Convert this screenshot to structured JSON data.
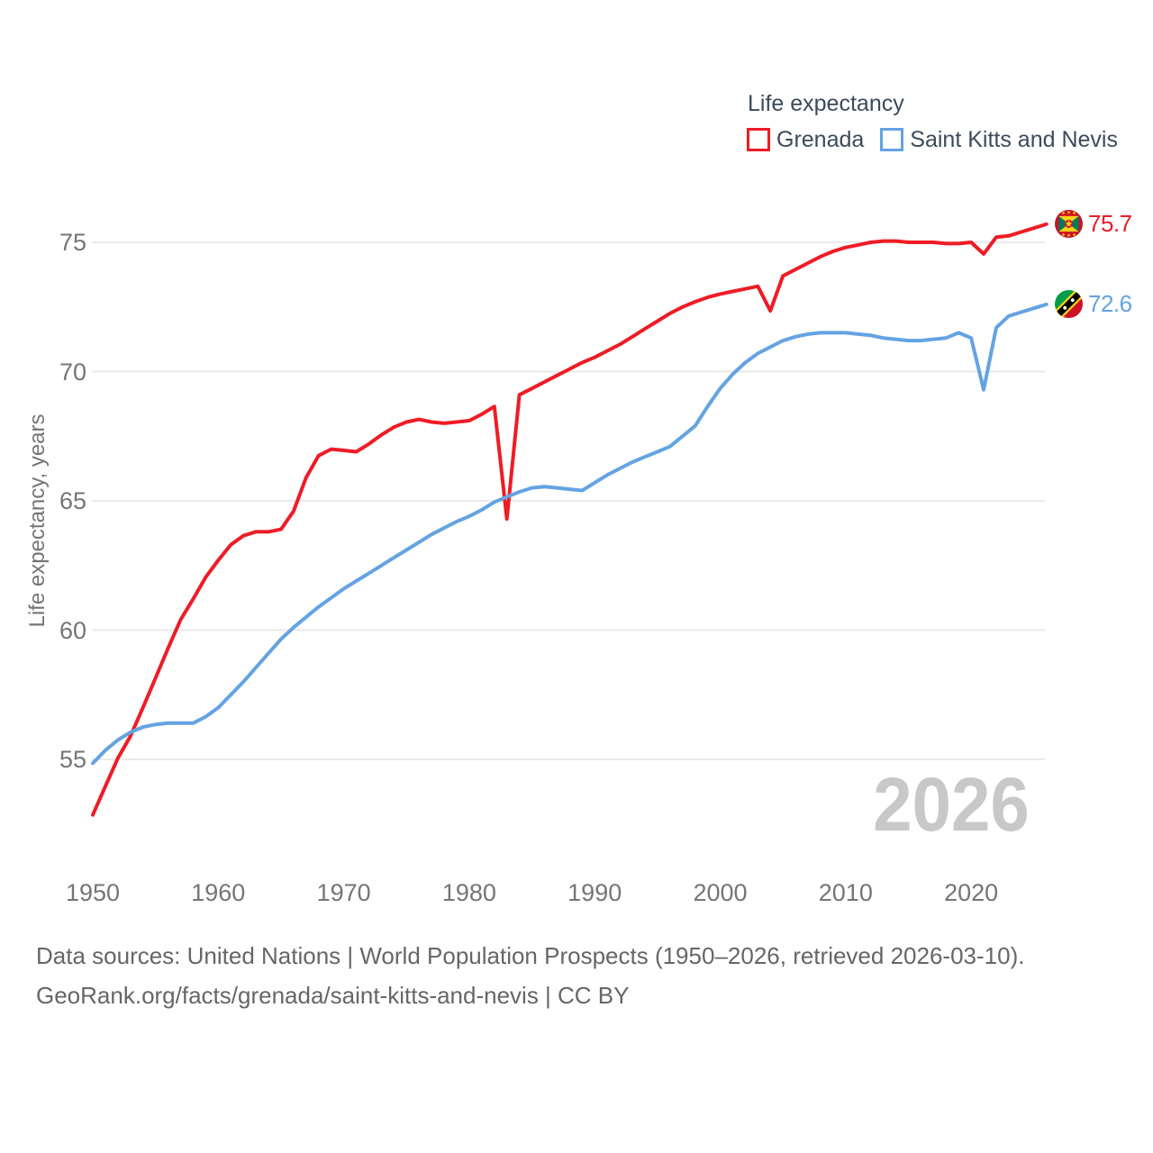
{
  "chart_data": {
    "type": "line",
    "title": "Life expectancy",
    "ylabel": "Life expectancy, years",
    "xlabel": "",
    "xlim": [
      1950,
      2026
    ],
    "ylim": [
      52.5,
      77
    ],
    "grid": true,
    "legend_position": "top-right",
    "x_ticks": [
      1950,
      1960,
      1970,
      1980,
      1990,
      2000,
      2010,
      2020
    ],
    "y_ticks": [
      55,
      60,
      65,
      70,
      75
    ],
    "x_start_year": 1950,
    "x_step_years": 1,
    "series": [
      {
        "name": "Grenada",
        "color": "#ee1c25",
        "end_label": "75.7",
        "values": [
          52.85,
          53.95,
          55.05,
          55.9,
          57.0,
          58.15,
          59.3,
          60.4,
          61.2,
          62.05,
          62.7,
          63.3,
          63.65,
          63.8,
          63.8,
          63.9,
          64.6,
          65.9,
          66.75,
          67.0,
          66.95,
          66.9,
          67.2,
          67.55,
          67.85,
          68.05,
          68.15,
          68.05,
          68.0,
          68.05,
          68.1,
          68.35,
          68.65,
          64.3,
          69.1,
          69.35,
          69.6,
          69.85,
          70.1,
          70.35,
          70.55,
          70.8,
          71.05,
          71.35,
          71.65,
          71.95,
          72.25,
          72.5,
          72.7,
          72.87,
          73.0,
          73.1,
          73.2,
          73.3,
          72.35,
          73.7,
          73.95,
          74.2,
          74.45,
          74.65,
          74.8,
          74.9,
          75.0,
          75.05,
          75.05,
          75.0,
          75.0,
          75.0,
          74.95,
          74.95,
          75.0,
          74.55,
          75.2,
          75.25,
          75.4,
          75.55,
          75.7
        ]
      },
      {
        "name": "Saint Kitts and Nevis",
        "color": "#64a3e3",
        "end_label": "72.6",
        "values": [
          54.85,
          55.35,
          55.75,
          56.05,
          56.25,
          56.35,
          56.4,
          56.4,
          56.4,
          56.65,
          57.0,
          57.5,
          58.0,
          58.55,
          59.1,
          59.65,
          60.1,
          60.5,
          60.9,
          61.25,
          61.6,
          61.9,
          62.2,
          62.5,
          62.8,
          63.1,
          63.4,
          63.7,
          63.95,
          64.2,
          64.4,
          64.65,
          64.95,
          65.15,
          65.35,
          65.5,
          65.55,
          65.5,
          65.45,
          65.4,
          65.7,
          66.0,
          66.25,
          66.5,
          66.7,
          66.9,
          67.1,
          67.5,
          67.9,
          68.65,
          69.35,
          69.9,
          70.35,
          70.7,
          70.95,
          71.2,
          71.35,
          71.45,
          71.5,
          71.5,
          71.5,
          71.45,
          71.4,
          71.3,
          71.25,
          71.2,
          71.2,
          71.25,
          71.3,
          71.5,
          71.3,
          69.3,
          71.7,
          72.15,
          72.3,
          72.45,
          72.6
        ]
      }
    ]
  },
  "legend": {
    "title": "Life expectancy",
    "items": [
      {
        "label": "Grenada",
        "color": "#ee1c25"
      },
      {
        "label": "Saint Kitts and Nevis",
        "color": "#64a3e3"
      }
    ]
  },
  "axis": {
    "y_title": "Life expectancy, years"
  },
  "end_labels": [
    {
      "value": "75.7",
      "flag": "grenada"
    },
    {
      "value": "72.6",
      "flag": "saint-kitts-and-nevis"
    }
  ],
  "watermark": "2026",
  "footer": {
    "line1": "Data sources: United Nations | World Population Prospects (1950–2026, retrieved 2026-03-10).",
    "line2": "GeoRank.org/facts/grenada/saint-kitts-and-nevis | CC BY"
  },
  "colors": {
    "grenada_line": "#ee1c25",
    "saint_kitts_line": "#64a3e3",
    "grid": "#eaeaea",
    "tick_text": "#757575",
    "legend_text": "#3b4a5e",
    "footer_text": "#666666",
    "watermark_text": "#c8c8c8"
  }
}
